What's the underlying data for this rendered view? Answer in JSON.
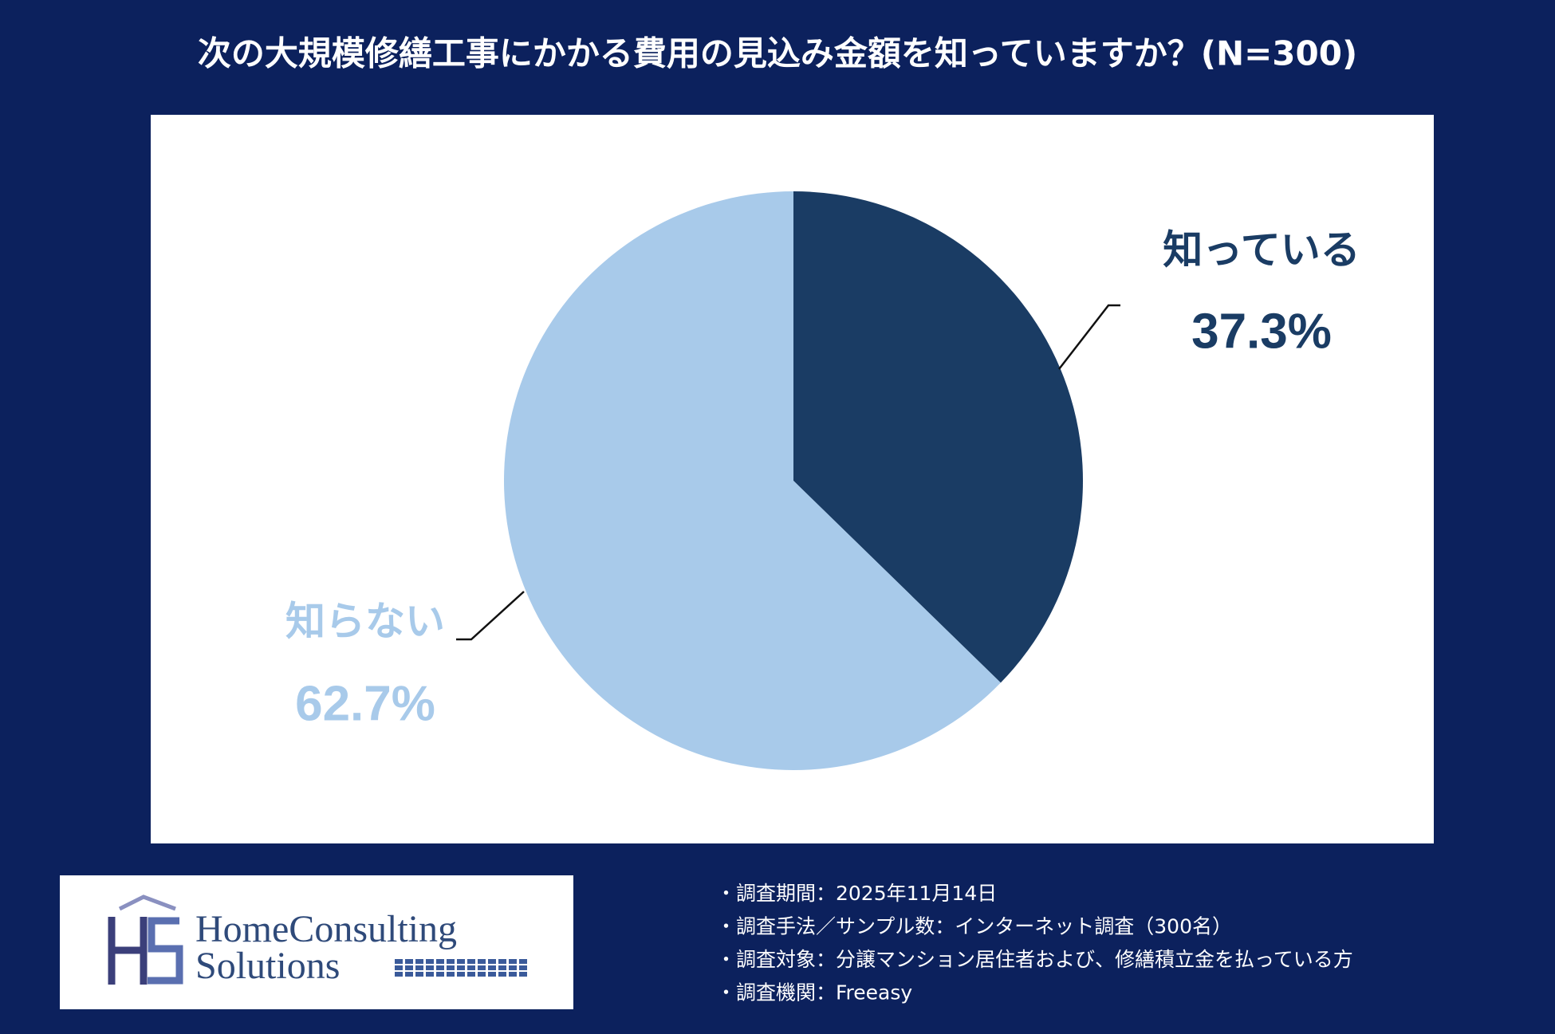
{
  "chart_data": {
    "type": "pie",
    "title": "次の大規模修繕工事にかかる費用の見込み金額を知っていますか？(N=300)",
    "categories": [
      "知っている",
      "知らない"
    ],
    "values": [
      37.3,
      62.7
    ],
    "value_labels": [
      "37.3%",
      "62.7%"
    ],
    "colors": [
      "#1a3c64",
      "#a8caea"
    ]
  },
  "logo": {
    "line1": "HomeConsulting",
    "line2": "Solutions"
  },
  "notes": [
    "・調査期間：2025年11月14日",
    "・調査手法／サンプル数：インターネット調査（300名）",
    "・調査対象：分譲マンション居住者および、修繕積立金を払っている方",
    "・調査機関：Freeasy"
  ]
}
